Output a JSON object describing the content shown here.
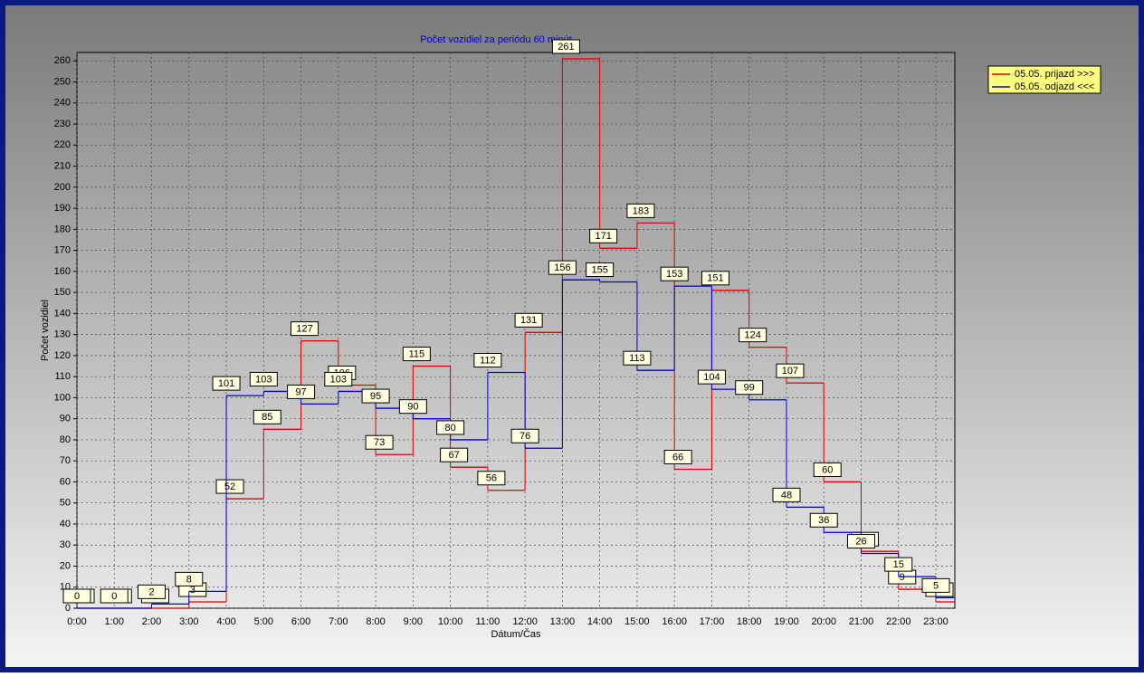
{
  "chart_data": {
    "type": "step",
    "title": "Počet vozidiel za periódu 60 minút",
    "x_label": "Dátum/Čas",
    "y_label": "Počet vozidiel",
    "categories": [
      "0:00",
      "1:00",
      "2:00",
      "3:00",
      "4:00",
      "5:00",
      "6:00",
      "7:00",
      "8:00",
      "9:00",
      "10:00",
      "11:00",
      "12:00",
      "13:00",
      "14:00",
      "15:00",
      "16:00",
      "17:00",
      "18:00",
      "19:00",
      "20:00",
      "21:00",
      "22:00",
      "23:00"
    ],
    "series": [
      {
        "name": "05.05.  prijazd >>>",
        "color": "#e00000",
        "values": [
          0,
          0,
          0,
          3,
          52,
          85,
          127,
          106,
          73,
          115,
          67,
          56,
          131,
          261,
          171,
          183,
          66,
          151,
          124,
          107,
          60,
          27,
          9,
          3
        ]
      },
      {
        "name": "05.05.  odjazd <<<",
        "color": "#0000d0",
        "values": [
          0,
          0,
          2,
          8,
          101,
          103,
          97,
          103,
          95,
          90,
          80,
          112,
          76,
          156,
          155,
          113,
          153,
          104,
          99,
          48,
          36,
          26,
          15,
          5
        ]
      }
    ],
    "ylim": [
      0,
      264
    ],
    "yticks": [
      0,
      10,
      20,
      30,
      40,
      50,
      60,
      70,
      80,
      90,
      100,
      110,
      120,
      130,
      140,
      150,
      160,
      170,
      180,
      190,
      200,
      210,
      220,
      230,
      240,
      250,
      260
    ],
    "grid": true
  }
}
